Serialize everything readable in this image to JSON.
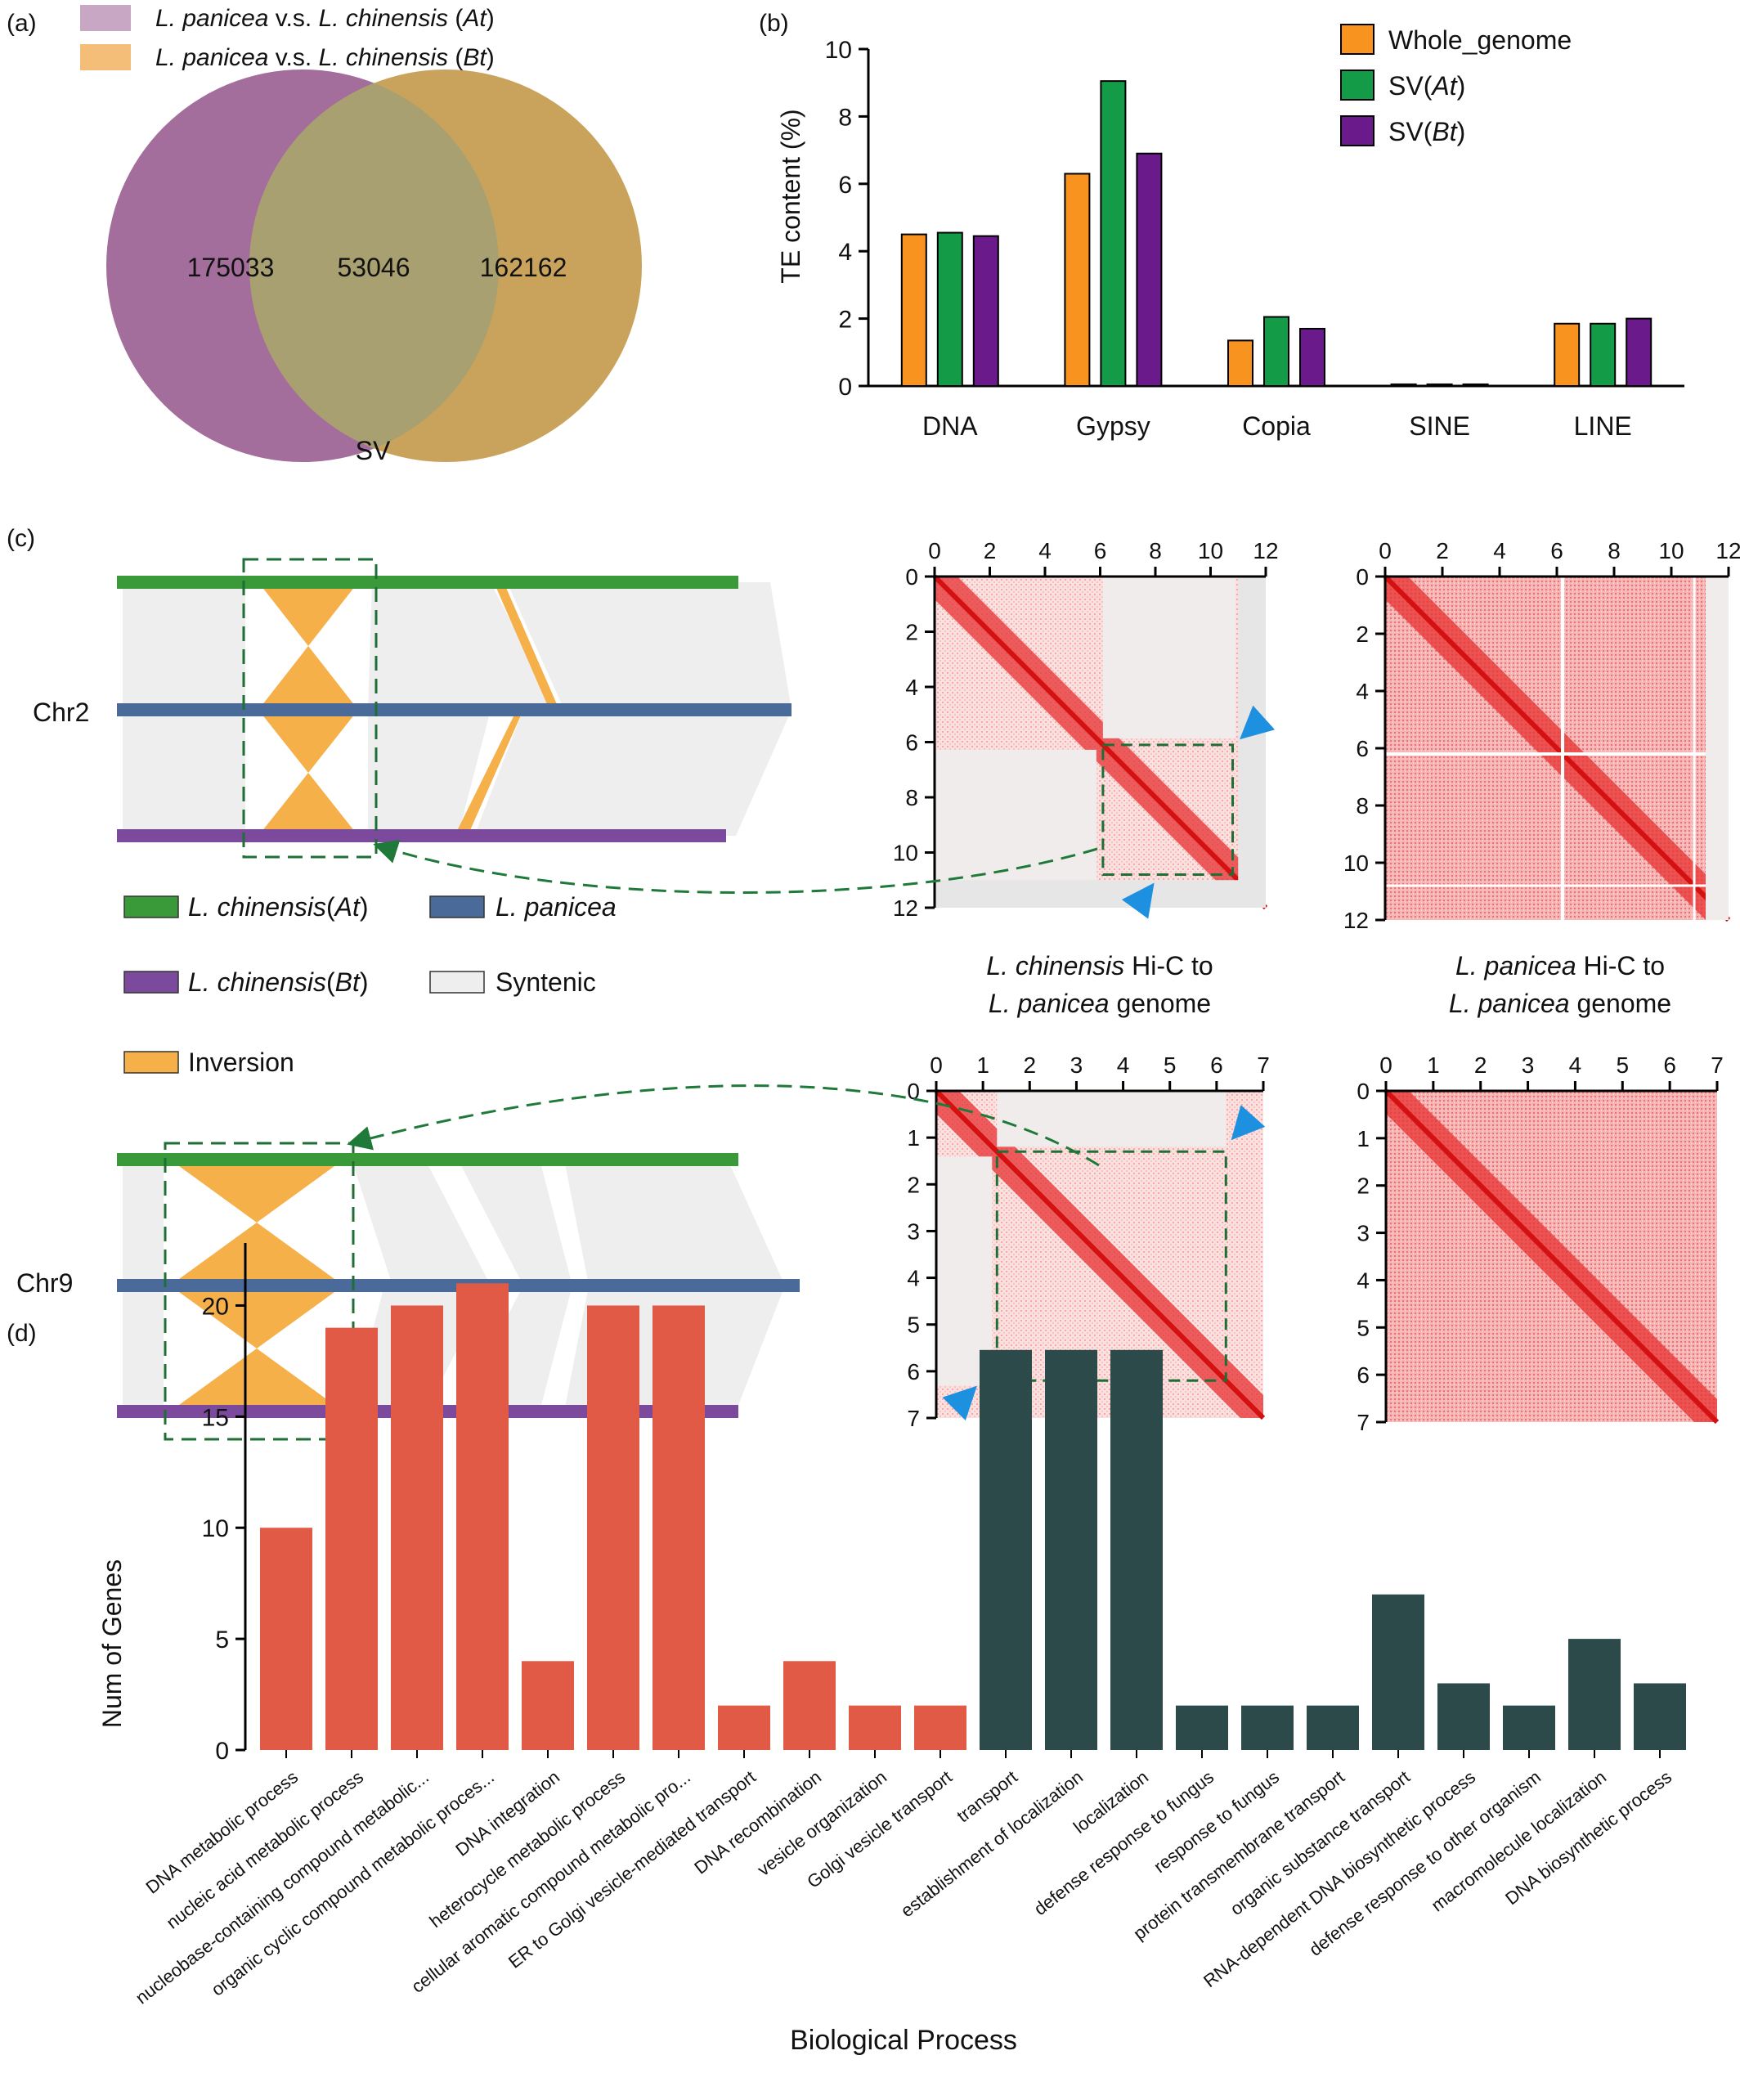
{
  "panel_labels": {
    "a": "(a)",
    "b": "(b)",
    "c": "(c)",
    "d": "(d)"
  },
  "venn": {
    "legend": [
      {
        "species1": "L. panicea",
        "vs": " v.s. ",
        "species2": "L. chinensis",
        "open": " (",
        "sub": "At",
        "close": ")",
        "color": "#bfa8cf"
      },
      {
        "species1": "L. panicea",
        "vs": " v.s. ",
        "species2": "L. chinensis",
        "open": " (",
        "sub": "Bt",
        "close": ")",
        "color": "#f4bd78"
      }
    ],
    "left_only": "175033",
    "overlap": "53046",
    "right_only": "162162",
    "caption": "SV",
    "colors": {
      "left": "#a36d9c",
      "right": "#c9a35c",
      "overlap": "#a8a070"
    }
  },
  "te_chart": {
    "ylabel": "TE content (%)",
    "legend": [
      {
        "pre": "Whole_genome",
        "it": "",
        "post": "",
        "color": "#f7931e"
      },
      {
        "pre": "SV(",
        "it": "At",
        "post": ")",
        "color": "#139b48"
      },
      {
        "pre": "SV(",
        "it": "Bt",
        "post": ")",
        "color": "#6a1a8a"
      }
    ]
  },
  "synteny": {
    "chr2_label": "Chr2",
    "chr9_label": "Chr9",
    "colors": {
      "at": "#3a9a3a",
      "panicea": "#4a6a9a",
      "bt": "#7b4a9c",
      "syntenic": "#eeeeee",
      "inversion": "#f6b04a"
    },
    "legend": [
      {
        "id": "at",
        "it": "L. chinensis",
        "rest": "(At)",
        "rest_it": "At"
      },
      {
        "id": "panicea",
        "it": "L. panicea",
        "rest": "",
        "rest_it": ""
      },
      {
        "id": "bt",
        "it": "L. chinensis",
        "rest": "(Bt)",
        "rest_it": "Bt"
      },
      {
        "id": "syntenic",
        "it": "",
        "rest": "Syntenic",
        "rest_it": ""
      },
      {
        "id": "inversion",
        "it": "",
        "rest": "Inversion",
        "rest_it": ""
      }
    ]
  },
  "hic": {
    "caption_left": {
      "it": "L. chinensis",
      "l1": " Hi-C to",
      "it2": "L. panicea",
      "l2": " genome"
    },
    "caption_right": {
      "it": "L. panicea",
      "l1": " Hi-C to",
      "it2": "L. panicea",
      "l2": " genome"
    },
    "ticks_chr2": [
      "0",
      "2",
      "4",
      "6",
      "8",
      "10",
      "12"
    ],
    "ticks_chr9": [
      "0",
      "1",
      "2",
      "3",
      "4",
      "5",
      "6",
      "7"
    ]
  },
  "go_chart": {
    "ylabel": "Num of Genes",
    "xlabel": "Biological Process",
    "yticks": [
      "0",
      "5",
      "10",
      "15",
      "20"
    ],
    "colors": {
      "group1": "#e05a45",
      "group2": "#2d4a4a"
    }
  },
  "chart_data": [
    {
      "type": "bar",
      "ylabel": "TE content (%)",
      "categories": [
        "DNA",
        "Gypsy",
        "Copia",
        "SINE",
        "LINE"
      ],
      "ylim": [
        0,
        10
      ],
      "yticks": [
        0,
        2,
        4,
        6,
        8,
        10
      ],
      "series": [
        {
          "name": "Whole_genome",
          "values": [
            4.5,
            6.3,
            1.35,
            0.05,
            1.85
          ]
        },
        {
          "name": "SV(At)",
          "values": [
            4.55,
            9.05,
            2.05,
            0.05,
            1.85
          ]
        },
        {
          "name": "SV(Bt)",
          "values": [
            4.45,
            6.9,
            1.7,
            0.05,
            2.0
          ]
        }
      ],
      "legend_position": "top-right"
    },
    {
      "type": "bar",
      "xlabel": "Biological Process",
      "ylabel": "Num of Genes",
      "ylim": [
        0,
        22
      ],
      "categories": [
        "DNA metabolic process",
        "nucleic acid metabolic process",
        "nucleobase-containing compound metabolic...",
        "organic cyclic compound metabolic proces...",
        "DNA integration",
        "heterocycle metabolic process",
        "cellular aromatic compound metabolic pro...",
        "ER to Golgi vesicle-mediated transport",
        "DNA recombination",
        "vesicle organization",
        "Golgi vesicle transport",
        "transport",
        "establishment of localization",
        "localization",
        "defense response to fungus",
        "response to fungus",
        "protein transmembrane transport",
        "organic substance transport",
        "RNA-dependent DNA biosynthetic process",
        "defense response to other organism",
        "macromolecule localization",
        "DNA biosynthetic process"
      ],
      "values": [
        10,
        19,
        20,
        21,
        4,
        20,
        20,
        2,
        4,
        2,
        2,
        18,
        18,
        18,
        2,
        2,
        2,
        7,
        3,
        2,
        5,
        3
      ],
      "groups": [
        1,
        1,
        1,
        1,
        1,
        1,
        1,
        1,
        1,
        1,
        1,
        2,
        2,
        2,
        2,
        2,
        2,
        2,
        2,
        2,
        2,
        2
      ]
    }
  ]
}
